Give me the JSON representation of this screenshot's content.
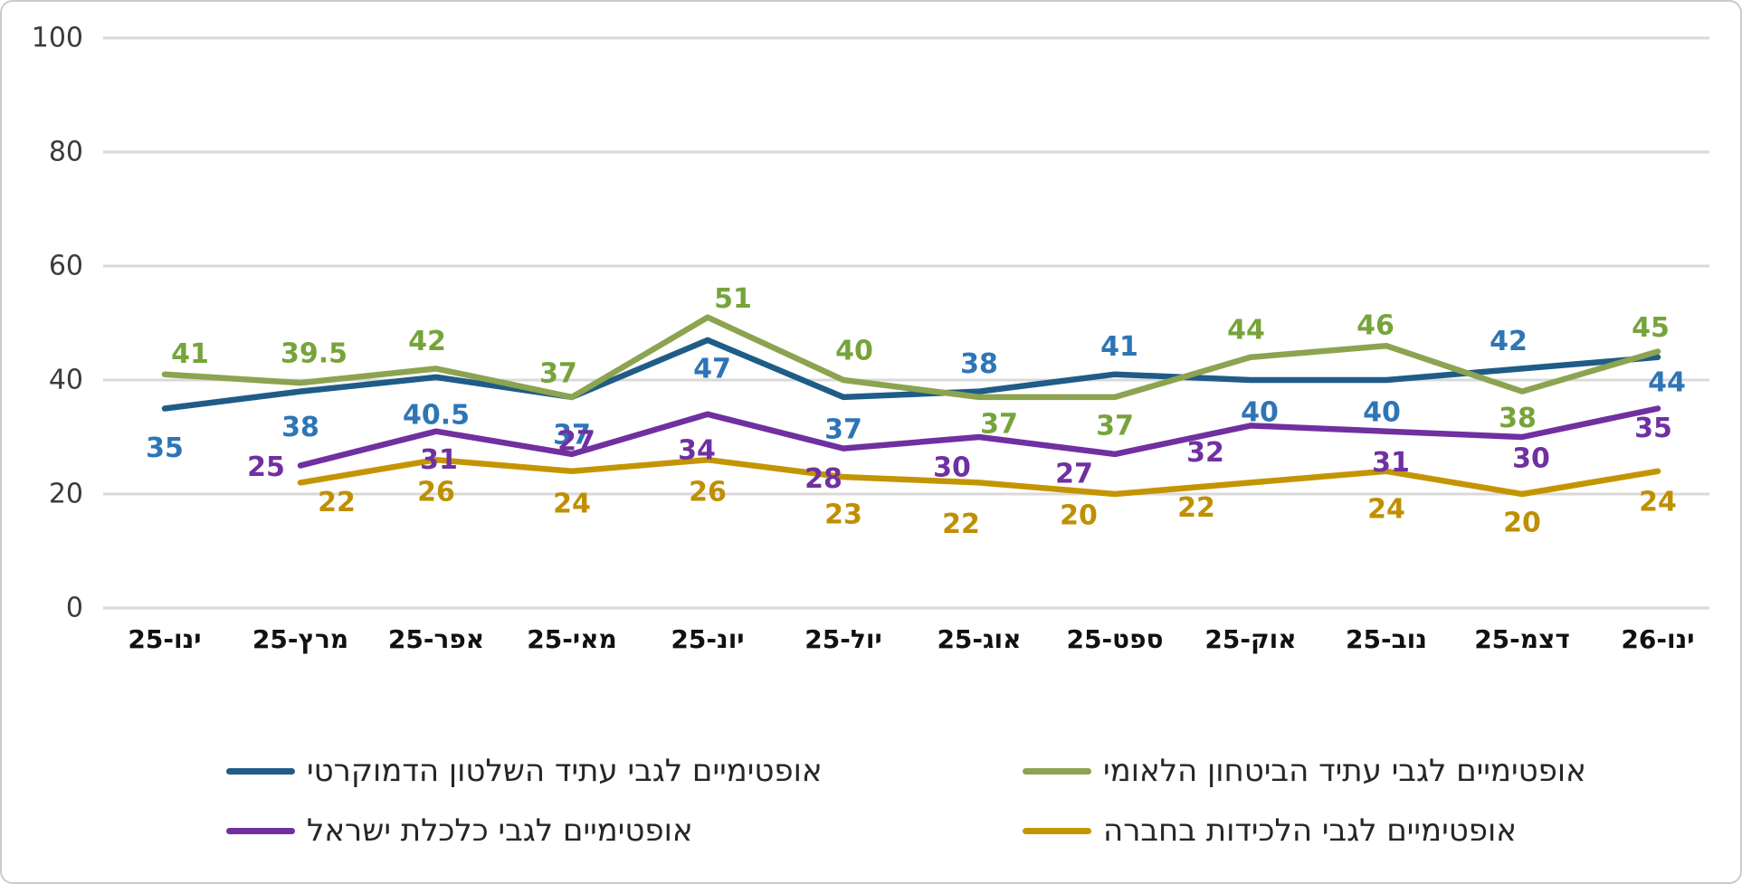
{
  "chart_data": {
    "type": "line",
    "title": "",
    "xlabel": "",
    "ylabel": "",
    "y_axis": {
      "min": 0,
      "max": 100,
      "ticks": [
        0,
        20,
        40,
        60,
        80,
        100
      ]
    },
    "grid": true,
    "grid_color": "#D9D9D9",
    "tick_label_color": "#3B3B3B",
    "x_label_color": "#111111",
    "legend_position": "bottom",
    "legend_text_color": "#262626",
    "categories": [
      "ינו-25",
      "מרץ-25",
      "אפר-25",
      "מאי-25",
      "יונ-25",
      "יול-25",
      "אוג-25",
      "ספט-25",
      "אוק-25",
      "נוב-25",
      "דצמ-25",
      "ינו-26"
    ],
    "series": [
      {
        "name": "אופטימיים לגבי עתיד השלטון הדמוקרטי",
        "color": "#1F5C87",
        "label_color": "#2E75B6",
        "values": [
          35,
          38,
          40.5,
          37,
          47,
          37,
          38,
          41,
          40,
          40,
          42,
          44
        ]
      },
      {
        "name": "אופטימיים לגבי עתיד הביטחון הלאומי",
        "color": "#8CA350",
        "label_color": "#76A43B",
        "values": [
          41,
          39.5,
          42,
          37,
          51,
          40,
          37,
          37,
          44,
          46,
          38,
          45
        ]
      },
      {
        "name": "אופטימיים לגבי כלכלת ישראל",
        "color": "#7030A0",
        "label_color": "#7030A0",
        "values": [
          null,
          25,
          31,
          27,
          34,
          28,
          30,
          27,
          32,
          31,
          30,
          35
        ]
      },
      {
        "name": "אופטימיים לגבי הלכידות בחברה",
        "color": "#C49502",
        "label_color": "#BF8F00",
        "values": [
          null,
          22,
          26,
          24,
          26,
          23,
          22,
          20,
          22,
          24,
          20,
          24
        ]
      }
    ]
  }
}
